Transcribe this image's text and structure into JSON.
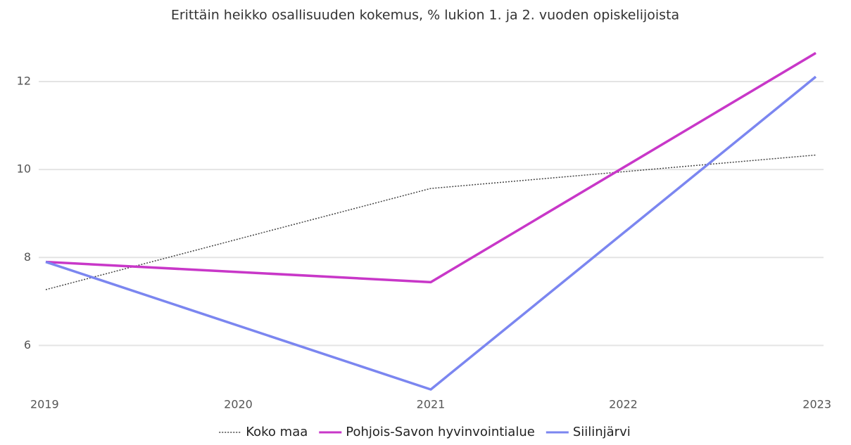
{
  "chart_data": {
    "type": "line",
    "title": "Erittäin heikko osallisuuden kokemus, % lukion 1. ja 2. vuoden opiskelijoista",
    "x": [
      2019,
      2021,
      2023
    ],
    "xlim": [
      2019,
      2023
    ],
    "xticks": [
      2019,
      2020,
      2021,
      2022,
      2023
    ],
    "ylim": [
      5,
      12.8
    ],
    "yticks": [
      6,
      8,
      10,
      12
    ],
    "grid": true,
    "legend": "bottom",
    "series": [
      {
        "name": "Koko maa",
        "color": "#444444",
        "style": "dotted",
        "values": [
          7.27,
          9.57,
          10.33
        ]
      },
      {
        "name": "Pohjois-Savon hyvinvointialue",
        "color": "#c837c8",
        "style": "solid",
        "values": [
          7.9,
          7.44,
          12.65
        ]
      },
      {
        "name": "Siilinjärvi",
        "color": "#7b86f0",
        "style": "solid",
        "values": [
          7.9,
          5.0,
          12.11
        ]
      }
    ]
  }
}
